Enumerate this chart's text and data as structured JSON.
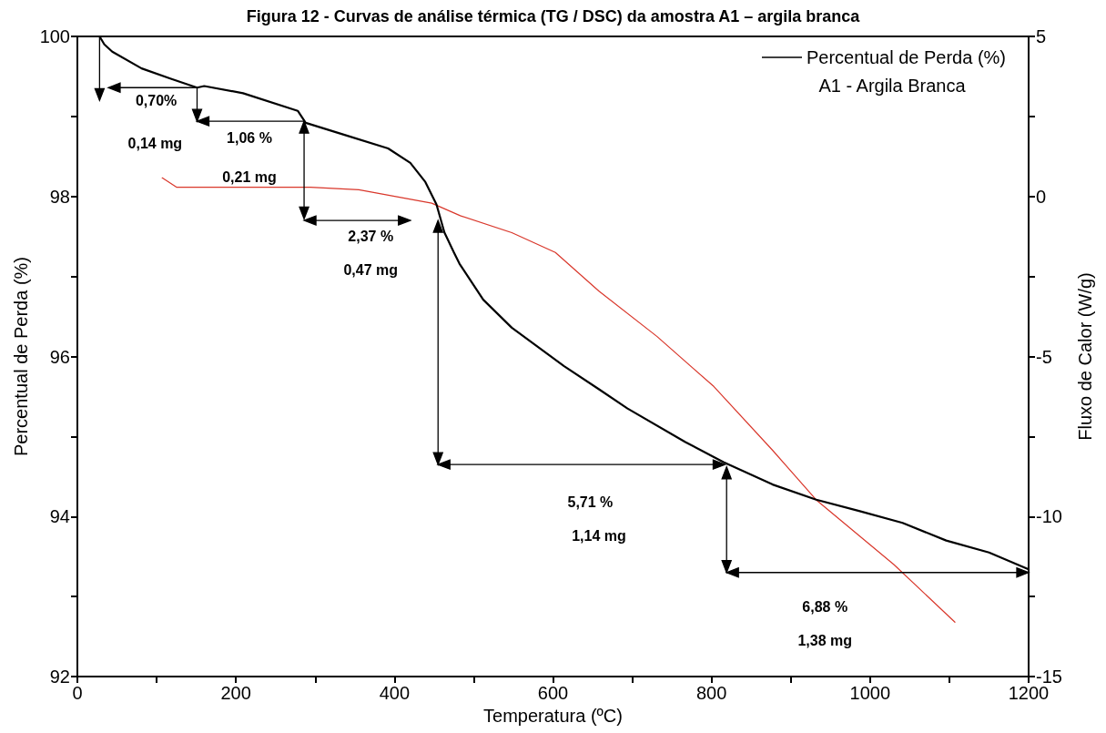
{
  "chart_data": {
    "type": "line",
    "title": "Figura 12 - Curvas de análise térmica (TG / DSC) da amostra A1 – argila branca",
    "xlabel": "Temperatura (ºC)",
    "ylabel": "Percentual de Perda (%)",
    "y2label": "Fluxo de Calor (W/g)",
    "legend_title": "A1 - Argila Branca",
    "series": [
      {
        "name": "Percentual de Perda (%)",
        "color": "#000000",
        "x": [
          28,
          34,
          44,
          81,
          118,
          151,
          160,
          209,
          278,
          288,
          337,
          392,
          420,
          439,
          453,
          463,
          475,
          482,
          512,
          548,
          614,
          658,
          694,
          767,
          815,
          877,
          932,
          986,
          1041,
          1096,
          1150,
          1200
        ],
        "values": [
          100,
          99.9,
          99.81,
          99.6,
          99.47,
          99.36,
          99.38,
          99.29,
          99.07,
          98.92,
          98.77,
          98.6,
          98.42,
          98.18,
          97.9,
          97.55,
          97.3,
          97.16,
          96.71,
          96.36,
          95.88,
          95.59,
          95.35,
          94.93,
          94.68,
          94.4,
          94.21,
          94.07,
          93.92,
          93.7,
          93.55,
          93.34
        ]
      },
      {
        "color": "#d9372b",
        "axis": "y2",
        "x": [
          107,
          125,
          209,
          294,
          355,
          447,
          483,
          548,
          603,
          658,
          731,
          803,
          877,
          932,
          1030,
          1107
        ],
        "values": [
          0.58,
          0.29,
          0.29,
          0.29,
          0.21,
          -0.21,
          -0.6,
          -1.13,
          -1.75,
          -2.96,
          -4.37,
          -5.94,
          -7.93,
          -9.48,
          -11.5,
          -13.3
        ]
      }
    ],
    "xlim": [
      0,
      1200
    ],
    "xticks": [
      0,
      {
        "value": 100,
        "label": null
      },
      200,
      {
        "value": 300,
        "label": null
      },
      400,
      {
        "value": 500,
        "label": null
      },
      600,
      {
        "value": 700,
        "label": null
      },
      800,
      {
        "value": 900,
        "label": null
      },
      1000,
      {
        "value": 1100,
        "label": null
      },
      1200
    ],
    "ylim": [
      92,
      100
    ],
    "yticks": [
      92,
      {
        "value": 93,
        "label": null
      },
      94,
      {
        "value": 95,
        "label": null
      },
      96,
      {
        "value": 97,
        "label": null
      },
      98,
      {
        "value": 99,
        "label": null
      },
      100
    ],
    "y2lim": [
      -15,
      5
    ],
    "y2ticks": [
      -15,
      {
        "value": -12.5,
        "label": null
      },
      -10,
      {
        "value": -7.5,
        "label": null
      },
      -5,
      {
        "value": -2.5,
        "label": null
      },
      0,
      {
        "value": 2.5,
        "label": null
      },
      5
    ],
    "annotations": [
      "0,70%",
      "0,14 mg",
      "1,06 %",
      "0,21 mg",
      "2,37 %",
      "0,47 mg",
      "5,71 %",
      "1,14 mg",
      "6,88 %",
      "1,38 mg"
    ],
    "legend": "top right",
    "grid": false,
    "marker": "none",
    "line_style": "solid"
  }
}
